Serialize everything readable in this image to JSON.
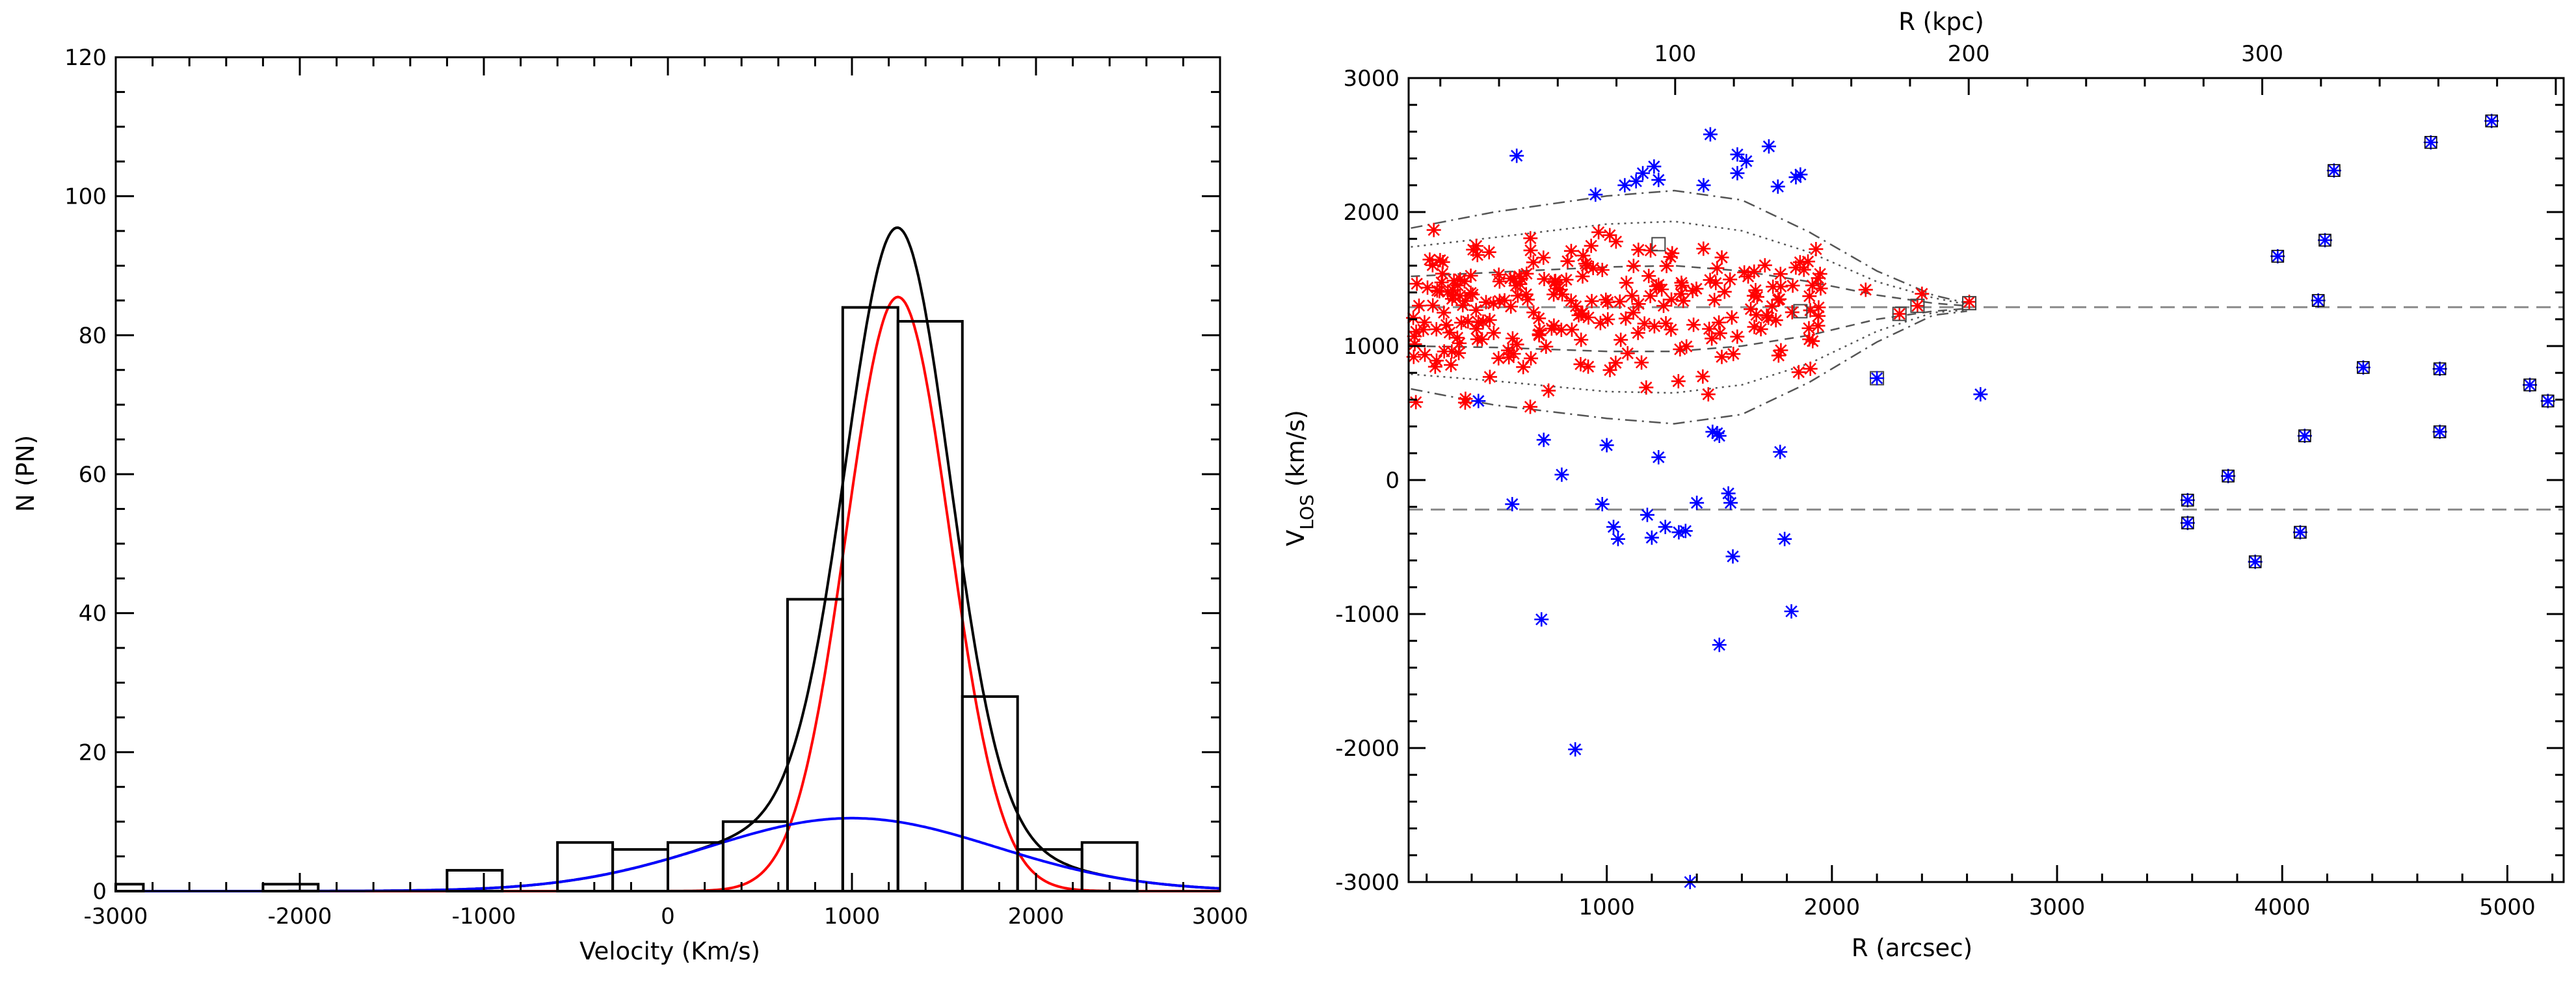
{
  "chart_data": [
    {
      "type": "bar",
      "xlabel": "Velocity (Km/s)",
      "ylabel": "N (PN)",
      "xlim": [
        -3000,
        3000
      ],
      "ylim": [
        0,
        120
      ],
      "xticks": [
        "-3000",
        "-2000",
        "-1000",
        "0",
        "1000",
        "2000",
        "3000"
      ],
      "yticks": [
        "0",
        "20",
        "40",
        "60",
        "80",
        "100",
        "120"
      ],
      "histogram": {
        "bin_edges": [
          -3000,
          -2850,
          -2200,
          -1900,
          -1200,
          -900,
          -600,
          -300,
          0,
          300,
          650,
          950,
          1250,
          1600,
          1900,
          2250,
          2550
        ],
        "counts": [
          1,
          0,
          1,
          0,
          3,
          0,
          7,
          6,
          7,
          10,
          42,
          84,
          82,
          28,
          6,
          7
        ],
        "color": "#000000"
      },
      "curves": [
        {
          "color": "#000000",
          "components": [
            {
              "amp": 85.5,
              "mu": 1250,
              "sigma": 280
            },
            {
              "amp": 10.5,
              "mu": 1000,
              "sigma": 780
            }
          ]
        },
        {
          "color": "#ff0000",
          "components": [
            {
              "amp": 85.5,
              "mu": 1250,
              "sigma": 280
            }
          ]
        },
        {
          "color": "#0000ff",
          "components": [
            {
              "amp": 10.5,
              "mu": 1000,
              "sigma": 780
            }
          ]
        }
      ]
    },
    {
      "type": "scatter",
      "xlabel": "R (arcsec)",
      "ylabel_main": "V",
      "ylabel_sub": "LOS",
      "ylabel_tail": " (km/s)",
      "top_xlabel": "R (kpc)",
      "xlim": [
        120,
        5250
      ],
      "ylim": [
        -3000,
        3000
      ],
      "xticks": [
        "1000",
        "2000",
        "3000",
        "4000",
        "5000"
      ],
      "yticks": [
        "-3000",
        "-2000",
        "-1000",
        "0",
        "1000",
        "2000",
        "3000"
      ],
      "top_ticks": [
        {
          "label": "100",
          "at": 1000
        },
        {
          "label": "200",
          "at": 2000
        },
        {
          "label": "300",
          "at": 3000
        }
      ],
      "top_kpc_per_arcsec": 0.0767,
      "hlines": [
        1290,
        -220
      ],
      "envelopes": [
        {
          "style": "dashdot",
          "upper": [
            [
              130,
              1880
            ],
            [
              500,
              2000
            ],
            [
              1000,
              2120
            ],
            [
              1300,
              2160
            ],
            [
              1600,
              2090
            ],
            [
              1900,
              1850
            ],
            [
              2200,
              1560
            ],
            [
              2450,
              1380
            ],
            [
              2600,
              1320
            ]
          ],
          "lower": [
            [
              130,
              680
            ],
            [
              500,
              560
            ],
            [
              1000,
              460
            ],
            [
              1300,
              420
            ],
            [
              1600,
              490
            ],
            [
              1900,
              730
            ],
            [
              2200,
              1030
            ],
            [
              2450,
              1230
            ],
            [
              2600,
              1260
            ]
          ]
        },
        {
          "style": "dotted",
          "upper": [
            [
              130,
              1740
            ],
            [
              500,
              1810
            ],
            [
              1000,
              1910
            ],
            [
              1300,
              1930
            ],
            [
              1600,
              1860
            ],
            [
              1900,
              1700
            ],
            [
              2200,
              1480
            ],
            [
              2450,
              1360
            ],
            [
              2600,
              1310
            ]
          ],
          "lower": [
            [
              130,
              790
            ],
            [
              500,
              740
            ],
            [
              1000,
              660
            ],
            [
              1300,
              650
            ],
            [
              1600,
              710
            ],
            [
              1900,
              870
            ],
            [
              2200,
              1110
            ],
            [
              2450,
              1250
            ],
            [
              2600,
              1270
            ]
          ]
        },
        {
          "style": "dashed",
          "upper": [
            [
              130,
              1520
            ],
            [
              500,
              1550
            ],
            [
              1000,
              1590
            ],
            [
              1300,
              1600
            ],
            [
              1600,
              1560
            ],
            [
              1900,
              1480
            ],
            [
              2200,
              1380
            ],
            [
              2450,
              1320
            ],
            [
              2600,
              1300
            ]
          ],
          "lower": [
            [
              130,
              1000
            ],
            [
              500,
              990
            ],
            [
              1000,
              960
            ],
            [
              1300,
              960
            ],
            [
              1600,
              1000
            ],
            [
              1900,
              1080
            ],
            [
              2200,
              1200
            ],
            [
              2450,
              1260
            ],
            [
              2600,
              1280
            ]
          ]
        }
      ],
      "red_cloud": {
        "color": "#ff0000",
        "count": 240,
        "x_range": [
          140,
          1950
        ],
        "y_center": 1280,
        "y_sigma": 300
      },
      "red_points": [
        [
          1900,
          1050
        ],
        [
          1950,
          1430
        ],
        [
          2150,
          1420
        ],
        [
          2300,
          1240
        ],
        [
          2380,
          1300
        ],
        [
          2400,
          1390
        ],
        [
          2610,
          1330
        ]
      ],
      "boxed_points": [
        [
          2200,
          760
        ],
        [
          2300,
          1240
        ],
        [
          2380,
          1300
        ],
        [
          2610,
          1320
        ],
        [
          1230,
          1760
        ],
        [
          1860,
          1260
        ]
      ],
      "blue_points": [
        [
          600,
          2420
        ],
        [
          430,
          590
        ],
        [
          580,
          -180
        ],
        [
          720,
          300
        ],
        [
          800,
          40
        ],
        [
          710,
          -1040
        ],
        [
          860,
          -2010
        ],
        [
          950,
          2130
        ],
        [
          1000,
          260
        ],
        [
          980,
          -180
        ],
        [
          1030,
          -350
        ],
        [
          1050,
          -440
        ],
        [
          1080,
          2200
        ],
        [
          1130,
          2230
        ],
        [
          1160,
          2290
        ],
        [
          1210,
          2340
        ],
        [
          1230,
          2240
        ],
        [
          1230,
          170
        ],
        [
          1180,
          -260
        ],
        [
          1200,
          -430
        ],
        [
          1260,
          -350
        ],
        [
          1320,
          -390
        ],
        [
          1350,
          -380
        ],
        [
          1370,
          -3000
        ],
        [
          1400,
          -170
        ],
        [
          1430,
          2200
        ],
        [
          1460,
          2580
        ],
        [
          1470,
          360
        ],
        [
          1490,
          350
        ],
        [
          1500,
          330
        ],
        [
          1500,
          -1230
        ],
        [
          1540,
          -100
        ],
        [
          1550,
          -170
        ],
        [
          1560,
          -570
        ],
        [
          1580,
          2430
        ],
        [
          1580,
          2290
        ],
        [
          1620,
          2380
        ],
        [
          1720,
          2490
        ],
        [
          1760,
          2190
        ],
        [
          1770,
          210
        ],
        [
          1790,
          -440
        ],
        [
          1820,
          -980
        ],
        [
          1840,
          2260
        ],
        [
          1860,
          2280
        ],
        [
          2200,
          760
        ],
        [
          2660,
          640
        ],
        [
          3580,
          -150
        ],
        [
          3580,
          -320
        ],
        [
          3760,
          30
        ],
        [
          3880,
          -610
        ],
        [
          3980,
          1670
        ],
        [
          4080,
          -390
        ],
        [
          4100,
          330
        ],
        [
          4160,
          1340
        ],
        [
          4190,
          1790
        ],
        [
          4230,
          2310
        ],
        [
          4360,
          840
        ],
        [
          4660,
          2520
        ],
        [
          4700,
          830
        ],
        [
          4700,
          360
        ],
        [
          4930,
          2680
        ],
        [
          5100,
          710
        ],
        [
          5180,
          590
        ]
      ],
      "blue_color": "#0000ff"
    }
  ]
}
